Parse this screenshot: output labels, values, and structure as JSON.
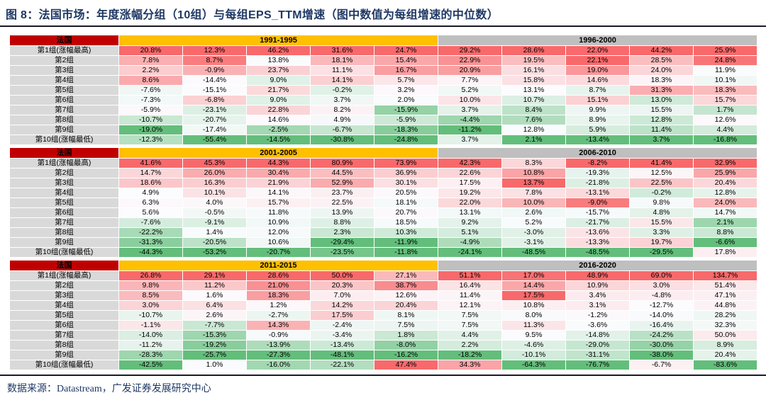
{
  "title": "图 8：法国市场：年度涨幅分组（10组）与每组EPS_TTM增速（图中数值为每组增速的中位数）",
  "footer": {
    "source": "数据来源：Datastream，广发证券发展研究中心"
  },
  "colors": {
    "title_color": "#1F3864",
    "rule_color": "#1A1A26",
    "country_bg": "#C00000",
    "country_text": "#FFFFFF",
    "period_left_bg": "#FFC000",
    "period_right_bg": "#BFBFBF",
    "row_label_bg": "#D9D9D9",
    "cell_text": "#000000",
    "scale_min_color": "#63BE7B",
    "scale_mid_color": "#FCFCFF",
    "scale_max_color": "#F8696B"
  },
  "chart_data": {
    "type": "heatmap",
    "title": "图 8：法国市场：年度涨幅分组（10组）与每组EPS_TTM增速（图中数值为每组增速的中位数）",
    "country_label": "法国",
    "value_unit": "percent",
    "color_scale": {
      "scope": "per_column_within_each_section",
      "min_color": "#63BE7B",
      "mid_color": "#FCFCFF",
      "max_color": "#F8696B",
      "midpoint": "50th_percentile"
    },
    "row_labels": [
      "第1组(涨幅最高)",
      "第2组",
      "第3组",
      "第4组",
      "第5组",
      "第6组",
      "第7组",
      "第8组",
      "第9组",
      "第10组(涨幅最低)"
    ],
    "sections": [
      {
        "periods": [
          "1991-1995",
          "1996-2000"
        ],
        "rows": [
          [
            20.8,
            12.3,
            46.2,
            31.6,
            24.7,
            29.2,
            28.6,
            22.0,
            44.2,
            25.9
          ],
          [
            7.8,
            8.7,
            13.8,
            18.1,
            15.4,
            22.9,
            19.5,
            22.1,
            28.5,
            24.8
          ],
          [
            2.2,
            -0.9,
            23.7,
            11.1,
            16.7,
            20.9,
            16.1,
            19.0,
            24.0,
            11.9
          ],
          [
            8.6,
            -14.4,
            9.0,
            14.1,
            5.7,
            7.7,
            15.8,
            14.6,
            18.3,
            10.1
          ],
          [
            -7.6,
            -15.1,
            21.7,
            -0.2,
            3.2,
            5.2,
            13.1,
            8.7,
            31.3,
            18.3
          ],
          [
            -7.3,
            -6.8,
            9.0,
            3.7,
            2.0,
            10.0,
            10.7,
            15.1,
            13.0,
            15.7
          ],
          [
            -5.9,
            -23.1,
            22.8,
            8.2,
            -15.9,
            3.7,
            8.4,
            9.9,
            15.5,
            1.7
          ],
          [
            -10.7,
            -20.7,
            14.6,
            4.9,
            -5.9,
            -4.4,
            7.6,
            8.9,
            12.8,
            12.6
          ],
          [
            -19.0,
            -17.4,
            -2.5,
            -6.7,
            -18.3,
            -11.2,
            12.8,
            5.9,
            11.4,
            4.4
          ],
          [
            -12.3,
            -55.4,
            -14.5,
            -30.8,
            -24.8,
            3.7,
            2.1,
            -13.4,
            3.7,
            -16.8
          ]
        ]
      },
      {
        "periods": [
          "2001-2005",
          "2006-2010"
        ],
        "rows": [
          [
            41.6,
            45.3,
            44.3,
            80.9,
            73.9,
            42.3,
            8.3,
            -8.2,
            41.4,
            32.9
          ],
          [
            14.7,
            26.0,
            30.4,
            44.5,
            36.9,
            22.6,
            10.8,
            -19.3,
            12.5,
            25.9
          ],
          [
            18.6,
            16.3,
            21.9,
            52.9,
            30.1,
            17.5,
            13.7,
            -21.8,
            22.5,
            20.4
          ],
          [
            4.9,
            10.1,
            14.1,
            23.7,
            20.5,
            19.2,
            7.8,
            -13.1,
            -0.2,
            12.8
          ],
          [
            6.3,
            4.0,
            15.7,
            22.5,
            18.1,
            22.0,
            10.0,
            -9.0,
            9.8,
            24.0
          ],
          [
            5.6,
            -0.5,
            11.8,
            13.9,
            20.7,
            13.1,
            2.6,
            -15.7,
            4.8,
            14.7
          ],
          [
            -7.6,
            -9.1,
            10.9,
            8.8,
            18.5,
            9.2,
            5.2,
            -21.7,
            15.5,
            2.1
          ],
          [
            -22.2,
            1.4,
            12.0,
            2.3,
            10.3,
            5.1,
            -3.0,
            -13.6,
            3.3,
            8.8
          ],
          [
            -31.3,
            -20.5,
            10.6,
            -29.4,
            -11.9,
            -4.9,
            -3.1,
            -13.3,
            19.7,
            -6.6
          ],
          [
            -44.3,
            -53.2,
            -20.7,
            -23.5,
            -11.8,
            -24.1,
            -48.5,
            -48.5,
            -29.5,
            17.8
          ]
        ]
      },
      {
        "periods": [
          "2011-2015",
          "2016-2020"
        ],
        "rows": [
          [
            26.8,
            29.1,
            28.6,
            50.0,
            27.1,
            51.1,
            17.0,
            48.9,
            69.0,
            134.7
          ],
          [
            9.8,
            11.2,
            21.0,
            20.3,
            38.7,
            16.4,
            14.4,
            10.9,
            3.0,
            51.4
          ],
          [
            8.5,
            1.6,
            18.3,
            7.0,
            12.6,
            11.4,
            17.5,
            3.4,
            -4.8,
            47.1
          ],
          [
            3.0,
            6.4,
            1.2,
            14.2,
            20.4,
            12.1,
            10.8,
            3.1,
            -12.7,
            44.8
          ],
          [
            -10.7,
            2.6,
            -2.7,
            17.5,
            8.1,
            7.5,
            8.0,
            -1.2,
            -14.0,
            28.2
          ],
          [
            -1.1,
            -7.7,
            14.3,
            -2.4,
            7.5,
            7.5,
            11.3,
            -3.6,
            -16.4,
            32.3
          ],
          [
            -14.0,
            -15.3,
            -0.9,
            -3.4,
            1.8,
            4.4,
            9.5,
            -14.8,
            -24.2,
            50.0
          ],
          [
            -11.2,
            -19.2,
            -13.9,
            -13.4,
            -8.0,
            2.2,
            -4.6,
            -29.0,
            -30.0,
            8.9
          ],
          [
            -28.3,
            -25.7,
            -27.3,
            -48.1,
            -16.2,
            -18.2,
            -10.1,
            -31.1,
            -38.0,
            20.4
          ],
          [
            -42.5,
            1.0,
            -16.0,
            -22.1,
            47.4,
            34.3,
            -64.3,
            -76.7,
            -6.7,
            -83.6
          ]
        ]
      }
    ]
  }
}
